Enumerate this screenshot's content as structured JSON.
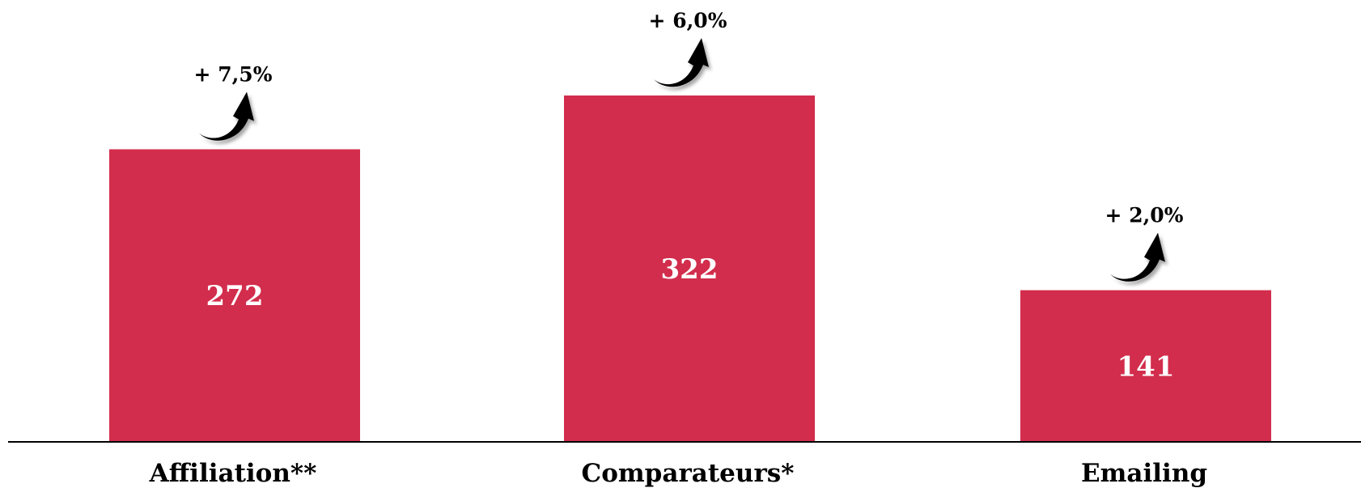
{
  "chart_data": {
    "type": "bar",
    "categories": [
      "Affiliation**",
      "Comparateurs*",
      "Emailing"
    ],
    "values": [
      272,
      322,
      141
    ],
    "value_labels": [
      "272",
      "322",
      "141"
    ],
    "growth_labels": [
      "+ 7,5%",
      "+ 6,0%",
      "+ 2,0%"
    ],
    "ylim": [
      0,
      322
    ],
    "grid": false,
    "legend": "none",
    "growth_icon": "curved-up-arrow-icon",
    "colors": {
      "bar": "#d22d4c",
      "axis": "#000000",
      "arrow": "#000000",
      "value_text": "#ffffff"
    }
  }
}
